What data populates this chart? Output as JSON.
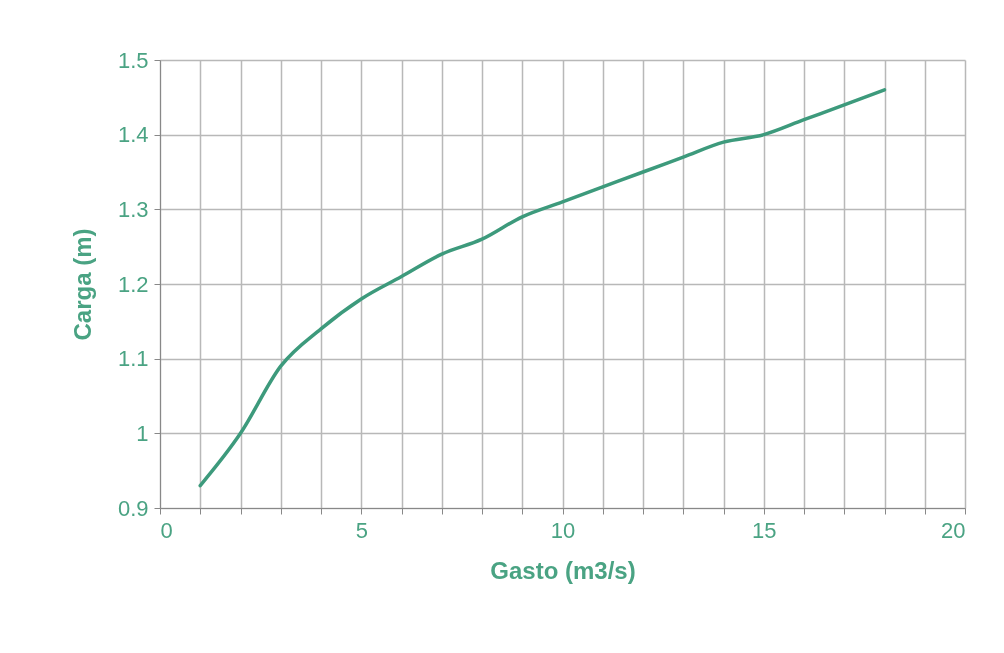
{
  "chart_data": {
    "type": "line",
    "xlabel": "Gasto (m3/s)",
    "ylabel": "Carga (m)",
    "x": [
      1,
      2,
      3,
      4,
      5,
      6,
      7,
      8,
      9,
      10,
      11,
      12,
      13,
      14,
      15,
      16,
      17,
      18
    ],
    "series": [
      {
        "color": "#3d9a7c",
        "values": [
          0.93,
          1.0,
          1.09,
          1.14,
          1.18,
          1.21,
          1.24,
          1.26,
          1.29,
          1.31,
          1.33,
          1.35,
          1.37,
          1.39,
          1.4,
          1.42,
          1.44,
          1.46
        ]
      }
    ],
    "xlim": [
      0,
      20
    ],
    "ylim": [
      0.9,
      1.5
    ],
    "xticks": [
      0,
      {
        "value": 1,
        "label": null
      },
      {
        "value": 2,
        "label": null
      },
      {
        "value": 3,
        "label": null
      },
      {
        "value": 4,
        "label": null
      },
      5,
      {
        "value": 6,
        "label": null
      },
      {
        "value": 7,
        "label": null
      },
      {
        "value": 8,
        "label": null
      },
      {
        "value": 9,
        "label": null
      },
      10,
      {
        "value": 11,
        "label": null
      },
      {
        "value": 12,
        "label": null
      },
      {
        "value": 13,
        "label": null
      },
      {
        "value": 14,
        "label": null
      },
      15,
      {
        "value": 16,
        "label": null
      },
      {
        "value": 17,
        "label": null
      },
      {
        "value": 18,
        "label": null
      },
      {
        "value": 19,
        "label": null
      },
      20
    ],
    "yticks": [
      0.9,
      1,
      1.1,
      1.2,
      1.3,
      1.4,
      1.5
    ],
    "grid": true,
    "marker": "none",
    "line_style": "solid"
  }
}
